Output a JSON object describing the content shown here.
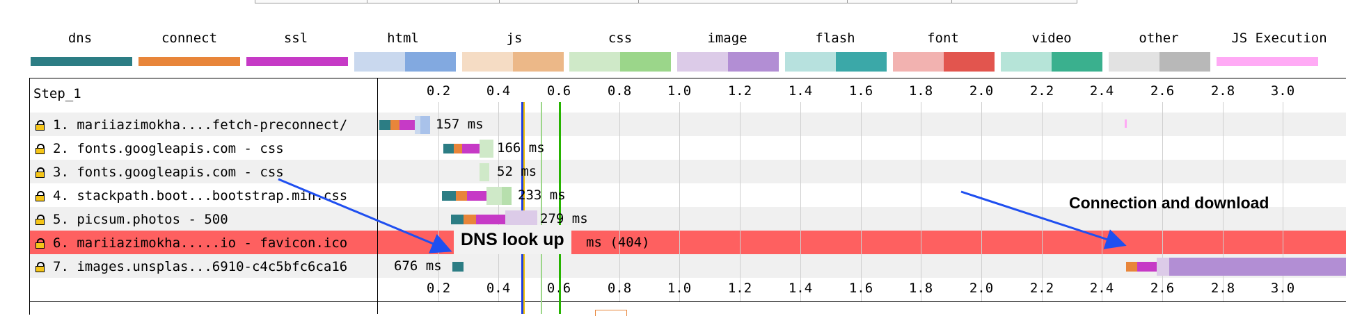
{
  "legend": [
    {
      "label": "dns",
      "type": "solid",
      "color": "#2c7d84"
    },
    {
      "label": "connect",
      "type": "solid",
      "color": "#e8853a"
    },
    {
      "label": "ssl",
      "type": "solid",
      "color": "#c63ac6"
    },
    {
      "label": "html",
      "type": "split",
      "light": "#c9d8ee",
      "dark": "#82a9e0"
    },
    {
      "label": "js",
      "type": "split",
      "light": "#f5dcc4",
      "dark": "#ecb888"
    },
    {
      "label": "css",
      "type": "split",
      "light": "#cfe9c8",
      "dark": "#9bd68a"
    },
    {
      "label": "image",
      "type": "split",
      "light": "#dccbe8",
      "dark": "#b28ed4"
    },
    {
      "label": "flash",
      "type": "split",
      "light": "#b7e1de",
      "dark": "#3ba8a8"
    },
    {
      "label": "font",
      "type": "split",
      "light": "#f2b2b0",
      "dark": "#e2554e"
    },
    {
      "label": "video",
      "type": "split",
      "light": "#b6e4d8",
      "dark": "#3ab08e"
    },
    {
      "label": "other",
      "type": "split",
      "light": "#e2e2e2",
      "dark": "#b8b8b8"
    },
    {
      "label": "JS Execution",
      "type": "solid",
      "color": "#ffaaf5"
    }
  ],
  "waterfall": {
    "step_label": "Step_1",
    "ticks": [
      "0.2",
      "0.4",
      "0.6",
      "0.8",
      "1.0",
      "1.2",
      "1.4",
      "1.6",
      "1.8",
      "2.0",
      "2.2",
      "2.4",
      "2.6",
      "2.8",
      "3.0"
    ],
    "rows": [
      {
        "label": "1. mariiazimokha....fetch-preconnect/",
        "duration": "157 ms",
        "status": "ok"
      },
      {
        "label": "2. fonts.googleapis.com - css",
        "duration": "166 ms",
        "status": "ok"
      },
      {
        "label": "3. fonts.googleapis.com - css",
        "duration": "52 ms",
        "status": "ok"
      },
      {
        "label": "4. stackpath.boot...bootstrap.min.css",
        "duration": "233 ms",
        "status": "ok"
      },
      {
        "label": "5. picsum.photos - 500",
        "duration": "279 ms",
        "status": "ok"
      },
      {
        "label": "6. mariiazimokha.....io - favicon.ico",
        "duration": "ms (404)",
        "status": "error"
      },
      {
        "label": "7. images.unsplas...6910-c4c5bfc6ca16",
        "duration": "676 ms",
        "status": "ok"
      }
    ]
  },
  "annotations": {
    "dns_lookup": "DNS look up",
    "connection_download": "Connection and  download"
  }
}
